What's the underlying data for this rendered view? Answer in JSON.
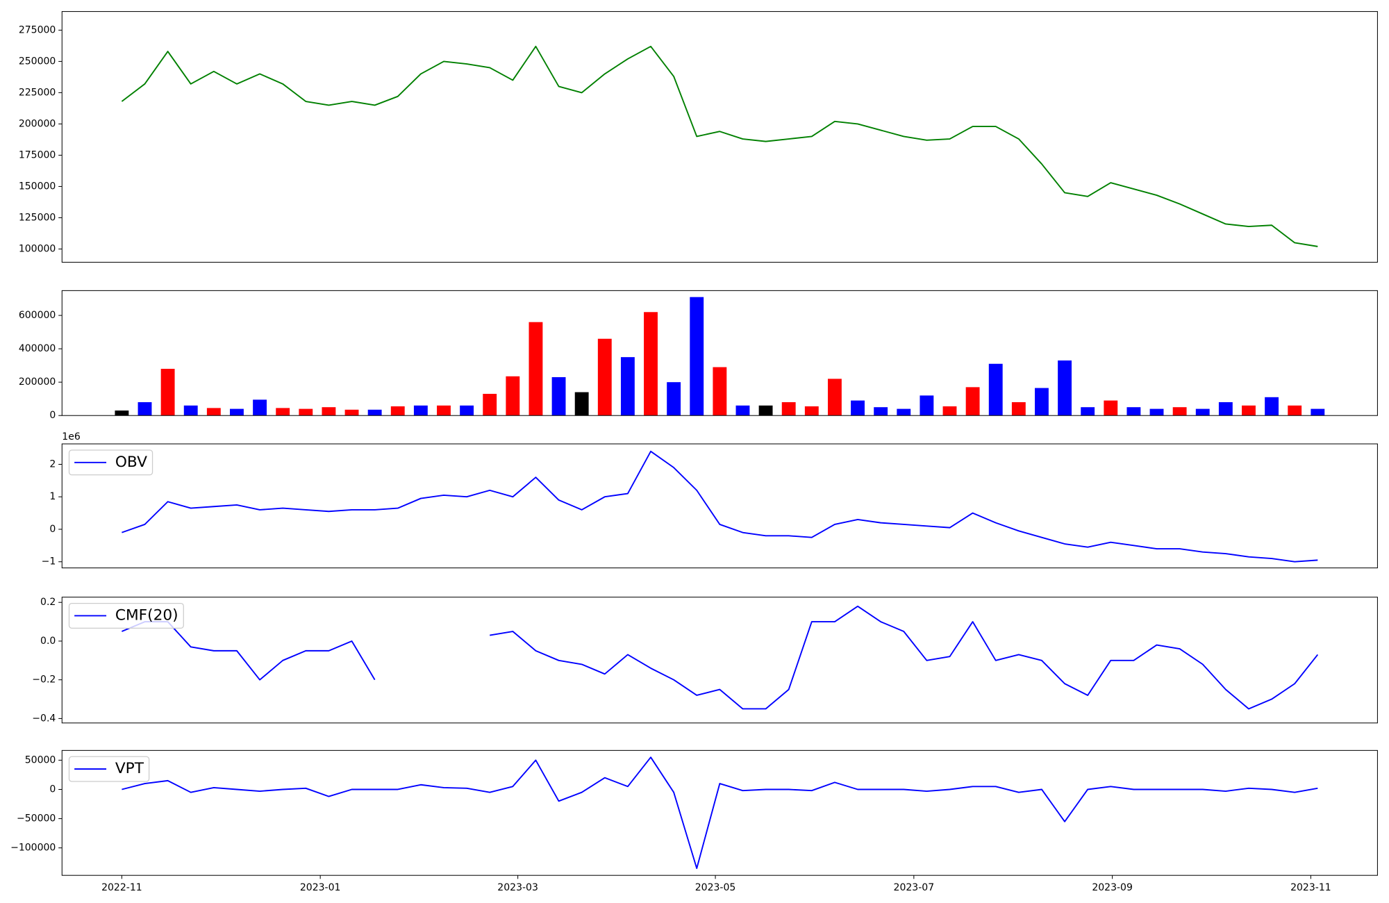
{
  "chart_data": [
    {
      "type": "line",
      "color": "#008000",
      "xlim": [
        -2.6,
        54.6
      ],
      "ylim": [
        89400,
        289900
      ],
      "yticks": [
        100000,
        125000,
        150000,
        175000,
        200000,
        225000,
        250000,
        275000
      ],
      "values": [
        218000,
        232000,
        258000,
        232000,
        242000,
        232000,
        240000,
        232000,
        218000,
        215000,
        218000,
        215000,
        222000,
        240000,
        250000,
        248000,
        245000,
        235000,
        262000,
        230000,
        225000,
        240000,
        252000,
        262000,
        238000,
        190000,
        194000,
        188000,
        186000,
        188000,
        190000,
        202000,
        200000,
        195000,
        190000,
        187000,
        188000,
        198000,
        198000,
        188000,
        168000,
        145000,
        142000,
        153000,
        148000,
        143000,
        136000,
        128000,
        120000,
        118000,
        119000,
        105000,
        102000
      ]
    },
    {
      "type": "bar",
      "xlim": [
        -2.6,
        54.6
      ],
      "ylim": [
        0,
        748700
      ],
      "yticks": [
        0,
        200000,
        400000,
        600000
      ],
      "values": [
        30000,
        80000,
        280000,
        60000,
        45000,
        40000,
        95000,
        45000,
        40000,
        50000,
        35000,
        35000,
        55000,
        60000,
        60000,
        60000,
        130000,
        235000,
        560000,
        230000,
        140000,
        460000,
        350000,
        620000,
        200000,
        710000,
        290000,
        60000,
        60000,
        80000,
        55000,
        220000,
        90000,
        50000,
        40000,
        120000,
        55000,
        170000,
        310000,
        80000,
        165000,
        330000,
        50000,
        90000,
        50000,
        40000,
        50000,
        40000,
        80000,
        60000,
        110000,
        60000,
        40000
      ],
      "colors": [
        "black",
        "blue",
        "red",
        "blue",
        "red",
        "blue",
        "blue",
        "red",
        "red",
        "red",
        "red",
        "blue",
        "red",
        "blue",
        "red",
        "blue",
        "red",
        "red",
        "red",
        "blue",
        "black",
        "red",
        "blue",
        "red",
        "blue",
        "blue",
        "red",
        "blue",
        "black",
        "red",
        "red",
        "red",
        "blue",
        "blue",
        "blue",
        "blue",
        "red",
        "red",
        "blue",
        "red",
        "blue",
        "blue",
        "blue",
        "red",
        "blue",
        "blue",
        "red",
        "blue",
        "blue",
        "red",
        "blue",
        "red",
        "blue"
      ]
    },
    {
      "type": "line",
      "legend": "upper left",
      "y_offset_label": "1e6",
      "xlim": [
        -2.6,
        54.6
      ],
      "ylim": [
        -1.19,
        2.63
      ],
      "yticks": [
        {
          "value": -1,
          "label": "−1"
        },
        0,
        1,
        2
      ],
      "series": [
        {
          "name": "OBV",
          "color": "blue",
          "values": [
            -0.1,
            0.15,
            0.85,
            0.65,
            0.7,
            0.75,
            0.6,
            0.65,
            0.6,
            0.55,
            0.6,
            0.6,
            0.65,
            0.95,
            1.05,
            1.0,
            1.2,
            1.0,
            1.6,
            0.9,
            0.6,
            1.0,
            1.1,
            2.4,
            1.9,
            1.2,
            0.15,
            -0.1,
            -0.2,
            -0.2,
            -0.25,
            0.15,
            0.3,
            0.2,
            0.15,
            0.1,
            0.05,
            0.5,
            0.2,
            -0.05,
            -0.25,
            -0.45,
            -0.55,
            -0.4,
            -0.5,
            -0.6,
            -0.6,
            -0.7,
            -0.75,
            -0.85,
            -0.9,
            -1.0,
            -0.95
          ]
        }
      ]
    },
    {
      "type": "line",
      "legend": "upper left",
      "xlim": [
        -2.6,
        54.6
      ],
      "ylim": [
        -0.423,
        0.227
      ],
      "yticks": [
        {
          "value": -0.4,
          "label": "−0.4"
        },
        {
          "value": -0.2,
          "label": "−0.2"
        },
        {
          "value": 0,
          "label": "0.0"
        },
        0.2
      ],
      "series": [
        {
          "name": "CMF(20)",
          "color": "blue",
          "values": [
            0.05,
            0.1,
            0.1,
            -0.03,
            -0.05,
            -0.05,
            -0.2,
            -0.1,
            -0.05,
            -0.05,
            0.0,
            -0.2,
            null,
            null,
            null,
            null,
            0.03,
            0.05,
            -0.05,
            -0.1,
            -0.12,
            -0.17,
            -0.07,
            -0.14,
            -0.2,
            -0.28,
            -0.25,
            -0.35,
            -0.35,
            -0.25,
            0.1,
            0.1,
            0.18,
            0.1,
            0.05,
            -0.1,
            -0.08,
            0.1,
            -0.1,
            -0.07,
            -0.1,
            -0.22,
            -0.28,
            -0.1,
            -0.1,
            -0.02,
            -0.04,
            -0.12,
            -0.25,
            -0.35,
            -0.3,
            -0.22,
            -0.07
          ]
        }
      ]
    },
    {
      "type": "line",
      "legend": "upper left",
      "xlim": [
        -2.6,
        54.6
      ],
      "xticks": [
        {
          "value": 0,
          "label": "2022-11"
        },
        {
          "value": 8.63,
          "label": "2023-01"
        },
        {
          "value": 17.22,
          "label": "2023-03"
        },
        {
          "value": 25.81,
          "label": "2023-05"
        },
        {
          "value": 34.44,
          "label": "2023-07"
        },
        {
          "value": 43.07,
          "label": "2023-09"
        },
        {
          "value": 51.7,
          "label": "2023-11"
        }
      ],
      "ylim": [
        -147000,
        66700
      ],
      "yticks": [
        {
          "value": -100000,
          "label": "−100000"
        },
        {
          "value": -50000,
          "label": "−50000"
        },
        0,
        50000
      ],
      "series": [
        {
          "name": "VPT",
          "color": "blue",
          "values": [
            0,
            10000,
            15000,
            -5000,
            3000,
            0,
            -3000,
            0,
            2000,
            -12000,
            0,
            0,
            0,
            8000,
            3000,
            2000,
            -5000,
            5000,
            50000,
            -20000,
            -5000,
            20000,
            5000,
            55000,
            -5000,
            -135000,
            10000,
            -2000,
            0,
            0,
            -2000,
            12000,
            0,
            0,
            0,
            -3000,
            0,
            5000,
            5000,
            -5000,
            0,
            -55000,
            0,
            5000,
            0,
            0,
            0,
            0,
            -3000,
            2000,
            0,
            -5000,
            2000
          ]
        }
      ]
    }
  ]
}
